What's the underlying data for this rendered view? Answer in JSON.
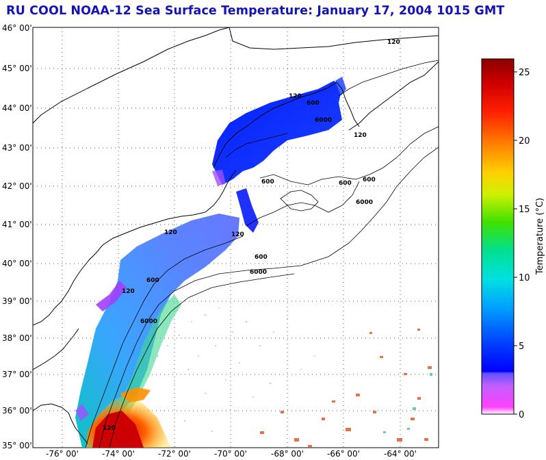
{
  "title": "RU COOL  NOAA-12  Sea Surface Temperature:  January 17, 2004 1015 GMT",
  "latitude_labels": [
    "46° 00'",
    "45° 00'",
    "44° 00'",
    "43° 00'",
    "42° 00'",
    "41° 00'",
    "40° 00'",
    "39° 00'",
    "38° 00'",
    "37° 00'",
    "36° 00'",
    "35° 00'"
  ],
  "longitude_labels": [
    "-76° 00'",
    "-74° 00'",
    "-72° 00'",
    "-70° 00'",
    "-68° 00'",
    "-66° 00'",
    "-64° 00'"
  ],
  "contour_labels": [
    "120",
    "120",
    "600",
    "6000",
    "600",
    "600",
    "120",
    "600",
    "6000",
    "120",
    "600",
    "120",
    "6000",
    "120",
    "600",
    "6000",
    "120"
  ],
  "colorbar": {
    "label": "Temperature (°C)",
    "ticks": [
      "25",
      "20",
      "15",
      "10",
      "5",
      "0"
    ],
    "range": [
      0,
      26
    ]
  },
  "colors": {
    "title": "#1414b4",
    "warm": "#d20000",
    "cold": "#1e32ff"
  }
}
